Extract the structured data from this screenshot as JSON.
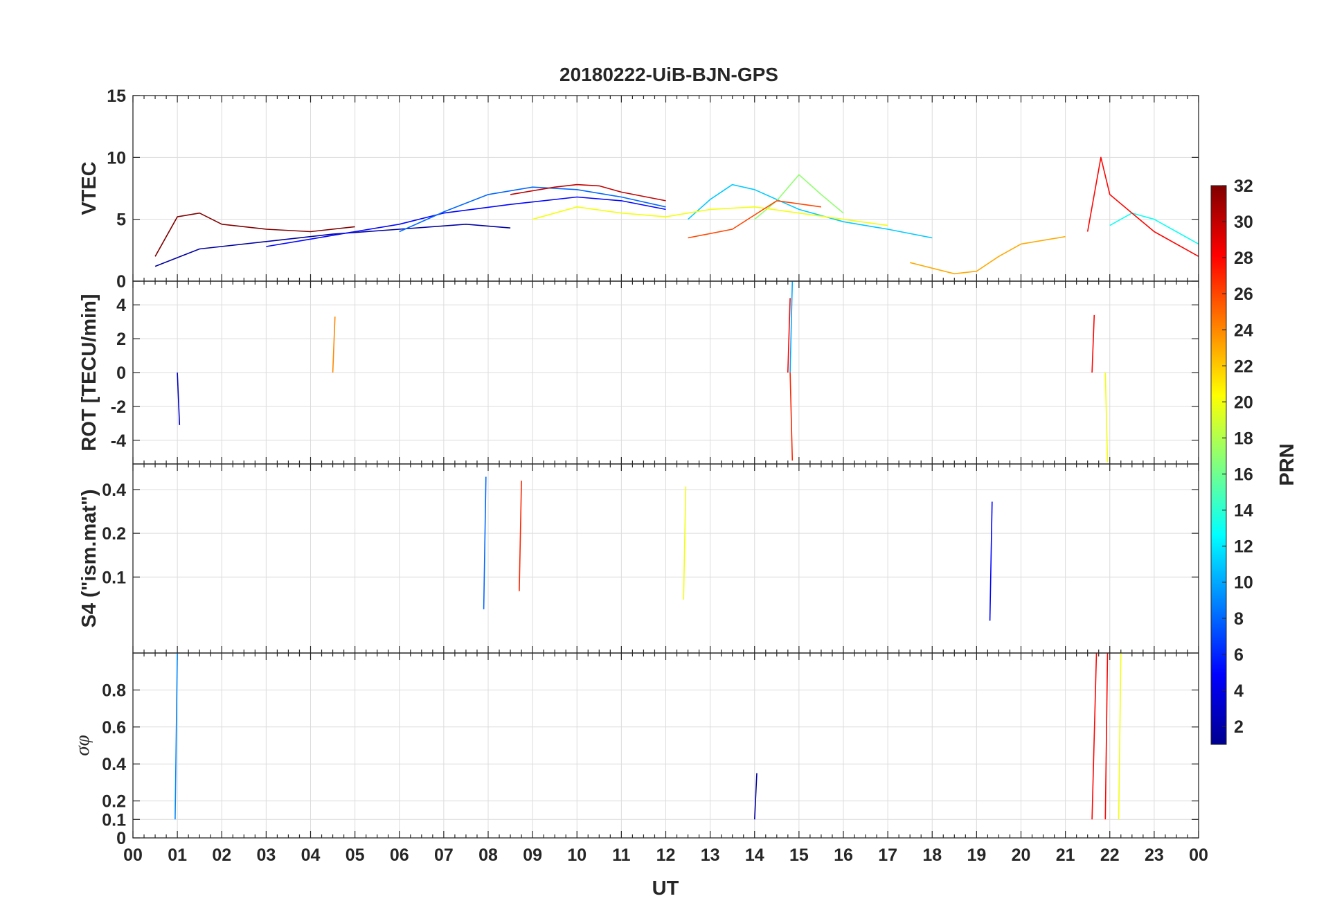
{
  "chart_data": {
    "type": "line",
    "title": "20180222-UiB-BJN-GPS",
    "xlabel": "UT",
    "x_tick_labels": [
      "00",
      "01",
      "02",
      "03",
      "04",
      "05",
      "06",
      "07",
      "08",
      "09",
      "10",
      "11",
      "12",
      "13",
      "14",
      "15",
      "16",
      "17",
      "18",
      "19",
      "20",
      "21",
      "22",
      "23",
      "00"
    ],
    "xlim": [
      0,
      24
    ],
    "grid": true,
    "colormap": "jet",
    "colorbar": {
      "label": "PRN",
      "range": [
        1,
        32
      ],
      "ticks": [
        2,
        4,
        6,
        8,
        10,
        12,
        14,
        16,
        18,
        20,
        22,
        24,
        26,
        28,
        30,
        32
      ],
      "placement": "right"
    },
    "panels": [
      {
        "id": "vtec",
        "ylabel": "VTEC",
        "ylim": [
          0,
          15
        ],
        "yticks": [
          0,
          5,
          10,
          15
        ],
        "series": [
          {
            "prn": 2,
            "x": [
              0.5,
              1.5,
              3,
              4.5,
              6,
              7.5,
              8.5
            ],
            "y": [
              1.2,
              2.6,
              3.2,
              3.8,
              4.2,
              4.6,
              4.3
            ]
          },
          {
            "prn": 5,
            "x": [
              3,
              4,
              5,
              6,
              7,
              8.5,
              10,
              11,
              12
            ],
            "y": [
              2.8,
              3.4,
              4.0,
              4.6,
              5.5,
              6.2,
              6.8,
              6.5,
              5.8
            ]
          },
          {
            "prn": 8,
            "x": [
              6,
              7,
              8,
              9,
              10,
              11,
              12
            ],
            "y": [
              4.0,
              5.6,
              7.0,
              7.6,
              7.4,
              6.8,
              6.0
            ]
          },
          {
            "prn": 11,
            "x": [
              12.5,
              13,
              13.5,
              14,
              14.5,
              15,
              16,
              17,
              18
            ],
            "y": [
              5.0,
              6.6,
              7.8,
              7.4,
              6.6,
              5.8,
              4.8,
              4.2,
              3.5
            ]
          },
          {
            "prn": 13,
            "x": [
              22,
              22.5,
              23,
              23.5,
              24
            ],
            "y": [
              4.5,
              5.5,
              5.0,
              4.0,
              3.0
            ]
          },
          {
            "prn": 17,
            "x": [
              14,
              14.5,
              15,
              15.5,
              16
            ],
            "y": [
              5.0,
              6.5,
              8.6,
              7.0,
              5.5
            ]
          },
          {
            "prn": 20,
            "x": [
              9,
              10,
              11,
              12,
              13,
              14,
              15,
              16,
              17
            ],
            "y": [
              5.0,
              6.0,
              5.5,
              5.2,
              5.8,
              6.0,
              5.5,
              5.0,
              4.5
            ]
          },
          {
            "prn": 23,
            "x": [
              17.5,
              18.5,
              19,
              19.5,
              20,
              21
            ],
            "y": [
              1.5,
              0.6,
              0.8,
              2.0,
              3.0,
              3.6
            ]
          },
          {
            "prn": 26,
            "x": [
              12.5,
              13.5,
              14.5,
              15.5
            ],
            "y": [
              3.5,
              4.2,
              6.5,
              6.0
            ]
          },
          {
            "prn": 28,
            "x": [
              21.5,
              21.8,
              22,
              22.5,
              23,
              24
            ],
            "y": [
              4.0,
              10.0,
              7.0,
              5.5,
              4.0,
              2.0
            ]
          },
          {
            "prn": 30,
            "x": [
              8.5,
              9.5,
              10,
              10.5,
              11,
              12
            ],
            "y": [
              7.0,
              7.6,
              7.8,
              7.7,
              7.2,
              6.5
            ]
          },
          {
            "prn": 32,
            "x": [
              0.5,
              1,
              1.5,
              2,
              3,
              4,
              5
            ],
            "y": [
              2.0,
              5.2,
              5.5,
              4.6,
              4.2,
              4.0,
              4.4
            ]
          }
        ]
      },
      {
        "id": "rot",
        "ylabel": "ROT [TECU/min]",
        "ylim": [
          -5.4,
          5.4
        ],
        "yticks": [
          -4,
          -2,
          0,
          2,
          4
        ],
        "series": [
          {
            "prn": 3,
            "x": [
              1.0,
              1.05
            ],
            "y": [
              0,
              -3.1
            ]
          },
          {
            "prn": 10,
            "x": [
              14.8,
              14.85
            ],
            "y": [
              0,
              5.4
            ]
          },
          {
            "prn": 20,
            "x": [
              21.9,
              21.95
            ],
            "y": [
              0,
              -5.3
            ]
          },
          {
            "prn": 24,
            "x": [
              4.5,
              4.55
            ],
            "y": [
              0,
              3.3
            ]
          },
          {
            "prn": 27,
            "x": [
              14.8,
              14.85
            ],
            "y": [
              0,
              -5.2
            ]
          },
          {
            "prn": 28,
            "x": [
              14.75,
              14.8
            ],
            "y": [
              0,
              4.4
            ]
          },
          {
            "prn": 28,
            "x": [
              21.6,
              21.65
            ],
            "y": [
              0,
              3.4
            ]
          }
        ]
      },
      {
        "id": "s4",
        "ylabel": "S4 (\"ism.mat\")",
        "ylim": [
          0.03,
          0.6
        ],
        "yticks": [
          0.1,
          0.2,
          0.4
        ],
        "yscale": "log",
        "series": [
          {
            "prn": 8,
            "x": [
              7.9,
              7.95
            ],
            "y": [
              0.06,
              0.49
            ]
          },
          {
            "prn": 27,
            "x": [
              8.7,
              8.75
            ],
            "y": [
              0.08,
              0.46
            ]
          },
          {
            "prn": 20,
            "x": [
              12.4,
              12.45
            ],
            "y": [
              0.07,
              0.42
            ]
          },
          {
            "prn": 5,
            "x": [
              19.3,
              19.35
            ],
            "y": [
              0.05,
              0.33
            ]
          }
        ]
      },
      {
        "id": "sigma_phi",
        "ylabel": "σφ",
        "ylim": [
          0,
          1.0
        ],
        "yticks": [
          0,
          0.1,
          0.2,
          0.4,
          0.6,
          0.8
        ],
        "series": [
          {
            "prn": 9,
            "x": [
              0.95,
              1.0
            ],
            "y": [
              0.1,
              1.0
            ]
          },
          {
            "prn": 28,
            "x": [
              21.6,
              21.7
            ],
            "y": [
              0.1,
              1.0
            ]
          },
          {
            "prn": 28,
            "x": [
              21.9,
              21.95
            ],
            "y": [
              0.1,
              1.0
            ]
          },
          {
            "prn": 20,
            "x": [
              22.2,
              22.25
            ],
            "y": [
              0.1,
              1.0
            ]
          },
          {
            "prn": 2,
            "x": [
              14.0,
              14.05
            ],
            "y": [
              0.1,
              0.35
            ]
          }
        ]
      }
    ]
  }
}
